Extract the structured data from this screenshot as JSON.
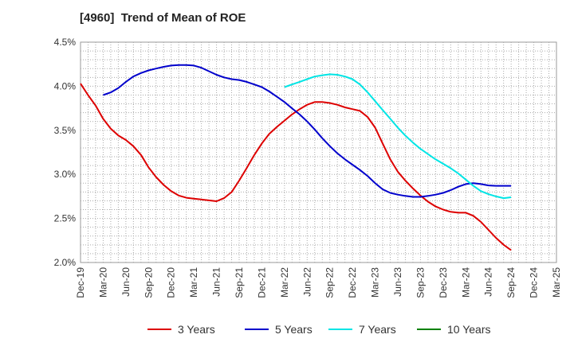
{
  "chart_data": {
    "type": "line",
    "title": "[4960]  Trend of Mean of ROE",
    "xlabel": "",
    "ylabel": "",
    "x_ticks": [
      "Dec-19",
      "Mar-20",
      "Jun-20",
      "Sep-20",
      "Dec-20",
      "Mar-21",
      "Jun-21",
      "Sep-21",
      "Dec-21",
      "Mar-22",
      "Jun-22",
      "Sep-22",
      "Dec-22",
      "Mar-23",
      "Jun-23",
      "Sep-23",
      "Dec-23",
      "Mar-24",
      "Jun-24",
      "Sep-24",
      "Dec-24",
      "Mar-25"
    ],
    "y_ticks": [
      "2.0%",
      "2.5%",
      "3.0%",
      "3.5%",
      "4.0%",
      "4.5%"
    ],
    "ylim": [
      2.0,
      4.5
    ],
    "grid": true,
    "legend_position": "bottom",
    "series": [
      {
        "name": "3 Years",
        "color": "#dd0000",
        "values": [
          [
            0,
            4.03
          ],
          [
            0.33,
            3.9
          ],
          [
            0.67,
            3.78
          ],
          [
            1,
            3.63
          ],
          [
            1.33,
            3.52
          ],
          [
            1.67,
            3.44
          ],
          [
            2,
            3.39
          ],
          [
            2.33,
            3.32
          ],
          [
            2.67,
            3.22
          ],
          [
            3,
            3.08
          ],
          [
            3.33,
            2.97
          ],
          [
            3.67,
            2.88
          ],
          [
            4,
            2.81
          ],
          [
            4.33,
            2.76
          ],
          [
            4.67,
            2.735
          ],
          [
            5,
            2.725
          ],
          [
            5.33,
            2.715
          ],
          [
            5.67,
            2.705
          ],
          [
            6,
            2.695
          ],
          [
            6.33,
            2.73
          ],
          [
            6.67,
            2.8
          ],
          [
            7,
            2.93
          ],
          [
            7.33,
            3.07
          ],
          [
            7.67,
            3.22
          ],
          [
            8,
            3.35
          ],
          [
            8.33,
            3.46
          ],
          [
            8.67,
            3.54
          ],
          [
            9,
            3.61
          ],
          [
            9.33,
            3.68
          ],
          [
            9.67,
            3.74
          ],
          [
            10,
            3.79
          ],
          [
            10.33,
            3.82
          ],
          [
            10.67,
            3.82
          ],
          [
            11,
            3.81
          ],
          [
            11.33,
            3.79
          ],
          [
            11.67,
            3.76
          ],
          [
            12,
            3.74
          ],
          [
            12.33,
            3.72
          ],
          [
            12.67,
            3.65
          ],
          [
            13,
            3.53
          ],
          [
            13.33,
            3.35
          ],
          [
            13.67,
            3.17
          ],
          [
            14,
            3.03
          ],
          [
            14.33,
            2.93
          ],
          [
            14.67,
            2.84
          ],
          [
            15,
            2.76
          ],
          [
            15.33,
            2.69
          ],
          [
            15.67,
            2.635
          ],
          [
            16,
            2.6
          ],
          [
            16.33,
            2.575
          ],
          [
            16.67,
            2.565
          ],
          [
            17,
            2.565
          ],
          [
            17.33,
            2.53
          ],
          [
            17.67,
            2.46
          ],
          [
            18,
            2.37
          ],
          [
            18.33,
            2.28
          ],
          [
            18.67,
            2.2
          ],
          [
            19,
            2.14
          ]
        ]
      },
      {
        "name": "5 Years",
        "color": "#0000cc",
        "values": [
          [
            1,
            3.9
          ],
          [
            1.33,
            3.93
          ],
          [
            1.67,
            3.98
          ],
          [
            2,
            4.05
          ],
          [
            2.33,
            4.11
          ],
          [
            2.67,
            4.15
          ],
          [
            3,
            4.18
          ],
          [
            3.33,
            4.2
          ],
          [
            3.67,
            4.22
          ],
          [
            4,
            4.235
          ],
          [
            4.33,
            4.24
          ],
          [
            4.67,
            4.24
          ],
          [
            5,
            4.235
          ],
          [
            5.33,
            4.21
          ],
          [
            5.67,
            4.17
          ],
          [
            6,
            4.13
          ],
          [
            6.33,
            4.1
          ],
          [
            6.67,
            4.08
          ],
          [
            7,
            4.07
          ],
          [
            7.33,
            4.05
          ],
          [
            7.67,
            4.02
          ],
          [
            8,
            3.99
          ],
          [
            8.33,
            3.94
          ],
          [
            8.67,
            3.88
          ],
          [
            9,
            3.82
          ],
          [
            9.33,
            3.75
          ],
          [
            9.67,
            3.68
          ],
          [
            10,
            3.6
          ],
          [
            10.33,
            3.51
          ],
          [
            10.67,
            3.41
          ],
          [
            11,
            3.32
          ],
          [
            11.33,
            3.24
          ],
          [
            11.67,
            3.17
          ],
          [
            12,
            3.11
          ],
          [
            12.33,
            3.05
          ],
          [
            12.67,
            2.98
          ],
          [
            13,
            2.9
          ],
          [
            13.33,
            2.83
          ],
          [
            13.67,
            2.79
          ],
          [
            14,
            2.77
          ],
          [
            14.33,
            2.755
          ],
          [
            14.67,
            2.745
          ],
          [
            15,
            2.745
          ],
          [
            15.33,
            2.755
          ],
          [
            15.67,
            2.77
          ],
          [
            16,
            2.79
          ],
          [
            16.33,
            2.82
          ],
          [
            16.67,
            2.86
          ],
          [
            17,
            2.89
          ],
          [
            17.33,
            2.9
          ],
          [
            17.67,
            2.89
          ],
          [
            18,
            2.875
          ],
          [
            18.33,
            2.87
          ],
          [
            18.67,
            2.87
          ],
          [
            19,
            2.87
          ]
        ]
      },
      {
        "name": "7 Years",
        "color": "#00e5e5",
        "values": [
          [
            9,
            3.99
          ],
          [
            9.33,
            4.02
          ],
          [
            9.67,
            4.05
          ],
          [
            10,
            4.08
          ],
          [
            10.33,
            4.11
          ],
          [
            10.67,
            4.125
          ],
          [
            11,
            4.135
          ],
          [
            11.33,
            4.13
          ],
          [
            11.67,
            4.11
          ],
          [
            12,
            4.08
          ],
          [
            12.33,
            4.02
          ],
          [
            12.67,
            3.93
          ],
          [
            13,
            3.83
          ],
          [
            13.33,
            3.73
          ],
          [
            13.67,
            3.63
          ],
          [
            14,
            3.53
          ],
          [
            14.33,
            3.44
          ],
          [
            14.67,
            3.36
          ],
          [
            15,
            3.29
          ],
          [
            15.33,
            3.23
          ],
          [
            15.67,
            3.17
          ],
          [
            16,
            3.12
          ],
          [
            16.33,
            3.07
          ],
          [
            16.67,
            3.01
          ],
          [
            17,
            2.94
          ],
          [
            17.33,
            2.87
          ],
          [
            17.67,
            2.81
          ],
          [
            18,
            2.775
          ],
          [
            18.33,
            2.75
          ],
          [
            18.67,
            2.73
          ],
          [
            19,
            2.74
          ]
        ]
      },
      {
        "name": "10 Years",
        "color": "#008000",
        "values": []
      }
    ]
  }
}
